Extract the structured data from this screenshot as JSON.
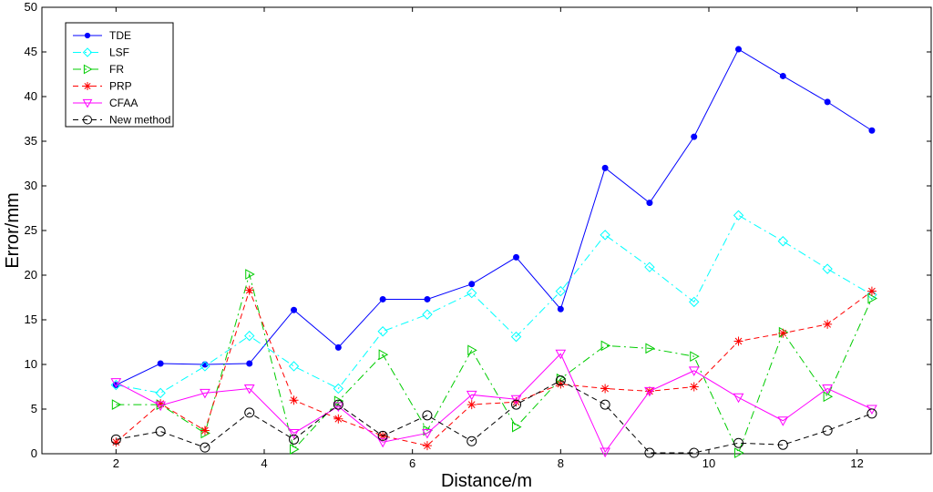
{
  "chart_data": {
    "type": "line",
    "title": "",
    "xlabel": "Distance/m",
    "ylabel": "Error/mm",
    "xlim": [
      1,
      13
    ],
    "ylim": [
      0,
      50
    ],
    "xticks": [
      2,
      4,
      6,
      8,
      10,
      12
    ],
    "yticks": [
      0,
      5,
      10,
      15,
      20,
      25,
      30,
      35,
      40,
      45,
      50
    ],
    "grid": false,
    "legend_position": "top-left",
    "x": [
      2.0,
      2.6,
      3.2,
      3.8,
      4.4,
      5.0,
      5.6,
      6.2,
      6.8,
      7.4,
      8.0,
      8.6,
      9.2,
      9.8,
      10.4,
      11.0,
      11.6,
      12.2
    ],
    "series": [
      {
        "name": "TDE",
        "color": "#0000ff",
        "marker": "dot",
        "dash": "solid",
        "values": [
          7.7,
          10.1,
          10.0,
          10.1,
          16.1,
          11.9,
          17.3,
          17.3,
          19.0,
          22.0,
          16.2,
          32.0,
          28.1,
          35.5,
          45.3,
          42.3,
          39.4,
          36.2
        ]
      },
      {
        "name": "LSF",
        "color": "#00ffff",
        "marker": "diamond",
        "dash": "dashdot",
        "values": [
          7.7,
          6.8,
          9.8,
          13.2,
          9.8,
          7.3,
          13.7,
          15.6,
          18.0,
          13.1,
          18.2,
          24.5,
          20.9,
          17.0,
          26.7,
          23.8,
          20.7,
          17.8
        ]
      },
      {
        "name": "FR",
        "color": "#00cc00",
        "marker": "triangle-right",
        "dash": "dashdot",
        "values": [
          5.5,
          5.5,
          2.3,
          20.1,
          0.5,
          5.9,
          11.1,
          2.6,
          11.6,
          3.0,
          8.4,
          12.1,
          11.8,
          10.9,
          0.1,
          13.6,
          6.4,
          17.4
        ]
      },
      {
        "name": "PRP",
        "color": "#ff0000",
        "marker": "asterisk",
        "dash": "dashed",
        "values": [
          1.3,
          5.6,
          2.6,
          18.3,
          6.0,
          3.9,
          2.0,
          0.9,
          5.5,
          5.8,
          7.8,
          7.3,
          7.0,
          7.5,
          12.6,
          13.5,
          14.5,
          18.2
        ]
      },
      {
        "name": "CFAA",
        "color": "#ff00ff",
        "marker": "triangle-down",
        "dash": "solid",
        "values": [
          8.0,
          5.4,
          6.8,
          7.3,
          2.3,
          5.3,
          1.3,
          2.3,
          6.6,
          6.1,
          11.2,
          0.2,
          7.0,
          9.3,
          6.3,
          3.7,
          7.3,
          5.0
        ]
      },
      {
        "name": "New method",
        "color": "#000000",
        "marker": "circle",
        "dash": "dashed",
        "values": [
          1.6,
          2.5,
          0.7,
          4.6,
          1.6,
          5.5,
          2.0,
          4.3,
          1.4,
          5.5,
          8.2,
          5.5,
          0.1,
          0.1,
          1.2,
          1.0,
          2.6,
          4.5
        ]
      }
    ]
  }
}
